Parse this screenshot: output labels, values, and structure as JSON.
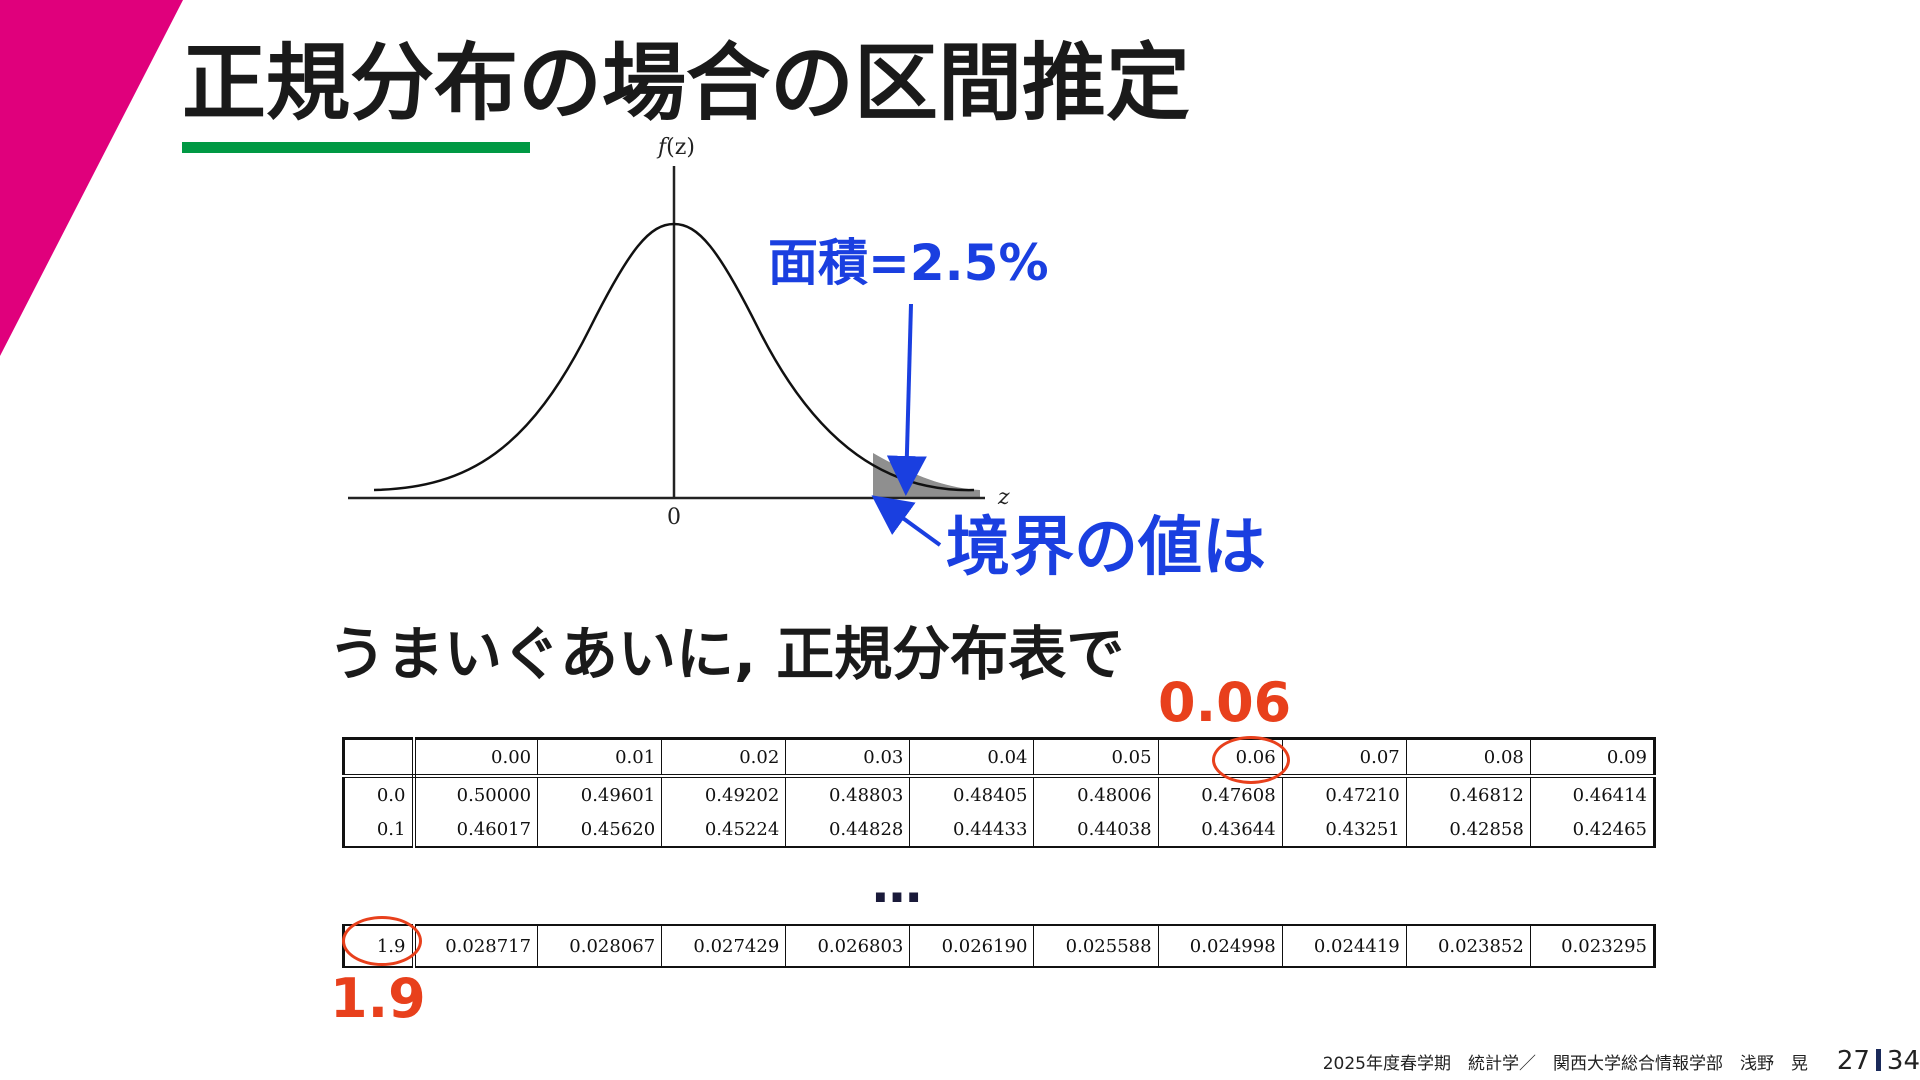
{
  "title": "正規分布の場合の区間推定",
  "colors": {
    "accent_magenta": "#e0007c",
    "underline_green": "#009944",
    "label_blue": "#1a3fe0",
    "highlight_red": "#e8401c"
  },
  "figure": {
    "y_axis_label_f": "f",
    "y_axis_label_var": "(z)",
    "x_axis_label": "z",
    "origin_label": "0"
  },
  "annotations": {
    "area_label": "面積=2.5%",
    "boundary_label": "境界の値は",
    "subtitle": "うまいぐあいに, 正規分布表で",
    "column_highlight": "0.06",
    "row_highlight": "1.9",
    "ellipsis": "…"
  },
  "table_top": {
    "header": [
      "",
      "0.00",
      "0.01",
      "0.02",
      "0.03",
      "0.04",
      "0.05",
      "0.06",
      "0.07",
      "0.08",
      "0.09"
    ],
    "rows": [
      [
        "0.0",
        "0.50000",
        "0.49601",
        "0.49202",
        "0.48803",
        "0.48405",
        "0.48006",
        "0.47608",
        "0.47210",
        "0.46812",
        "0.46414"
      ],
      [
        "0.1",
        "0.46017",
        "0.45620",
        "0.45224",
        "0.44828",
        "0.44433",
        "0.44038",
        "0.43644",
        "0.43251",
        "0.42858",
        "0.42465"
      ]
    ]
  },
  "table_bottom": {
    "row": [
      "1.9",
      "0.028717",
      "0.028067",
      "0.027429",
      "0.026803",
      "0.026190",
      "0.025588",
      "0.024998",
      "0.024419",
      "0.023852",
      "0.023295"
    ]
  },
  "footer": {
    "text": "2025年度春学期　統計学／　関西大学総合情報学部　浅野　晃",
    "page_current": "27",
    "page_total": "34"
  }
}
